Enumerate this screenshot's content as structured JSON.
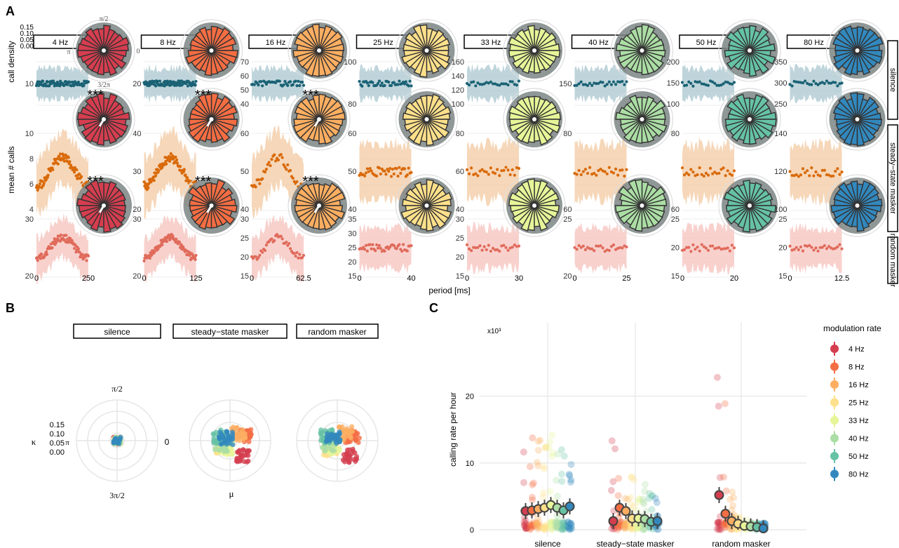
{
  "panel_labels": {
    "a": "A",
    "b": "B",
    "c": "C"
  },
  "panel_a": {
    "y_label_top": "call density",
    "y_label_main": "mean # calls",
    "x_label": "period [ms]",
    "significance_marker": "***",
    "density_ticks": [
      "0.15",
      "0.10",
      "0.05",
      "0.00"
    ],
    "polar_labels": {
      "top": "π/2",
      "left": "π",
      "right": "0",
      "bottom": "3/2π"
    },
    "row_labels": [
      "silence",
      "steady−state masker",
      "random masker"
    ],
    "columns": [
      {
        "label": "4 Hz",
        "color": "#D53E4F",
        "x_ticks": [
          "0",
          "250"
        ],
        "y_ticks_rows": [
          [
            "10"
          ],
          [
            "10",
            "8",
            "6",
            "4"
          ],
          [
            "30",
            "20"
          ]
        ],
        "sig_rows": [
          1,
          2
        ]
      },
      {
        "label": "8 Hz",
        "color": "#F46D43",
        "x_ticks": [
          "0",
          "125"
        ],
        "y_ticks_rows": [
          [
            "20"
          ],
          [
            "40",
            "30",
            "20"
          ],
          [
            "30",
            "20"
          ]
        ],
        "sig_rows": [
          1,
          2
        ]
      },
      {
        "label": "16 Hz",
        "color": "#FDAE61",
        "x_ticks": [
          "0",
          "62.5"
        ],
        "y_ticks_rows": [
          [
            "70",
            "60",
            "50",
            "40"
          ],
          [
            "60",
            "50",
            "40"
          ],
          [
            "30",
            "25",
            "20",
            "15"
          ]
        ],
        "sig_rows": [
          1,
          2
        ]
      },
      {
        "label": "25 Hz",
        "color": "#FEE08B",
        "x_ticks": [
          "0",
          "40"
        ],
        "y_ticks_rows": [
          [
            "100",
            "80"
          ],
          [
            "60",
            "50",
            "40"
          ],
          [
            "35",
            "30",
            "25",
            "20",
            "15"
          ]
        ],
        "sig_rows": []
      },
      {
        "label": "33 Hz",
        "color": "#E6F598",
        "x_ticks": [
          "0",
          "30"
        ],
        "y_ticks_rows": [
          [
            "160",
            "140",
            "120",
            "100"
          ],
          [
            "80",
            "60",
            "40"
          ],
          [
            "30",
            "25",
            "20",
            "15"
          ]
        ],
        "sig_rows": []
      },
      {
        "label": "40 Hz",
        "color": "#ABDDA4",
        "x_ticks": [
          "0",
          "25"
        ],
        "y_ticks_rows": [
          [
            "150"
          ],
          [
            "80",
            "60"
          ],
          [
            "25",
            "20"
          ]
        ],
        "sig_rows": []
      },
      {
        "label": "50 Hz",
        "color": "#66C2A5",
        "x_ticks": [
          "0",
          "20"
        ],
        "y_ticks_rows": [
          [
            "200",
            "150",
            "100"
          ],
          [
            "80",
            "60"
          ],
          [
            "25",
            "20",
            "15"
          ]
        ],
        "sig_rows": []
      },
      {
        "label": "80 Hz",
        "color": "#3288BD",
        "x_ticks": [
          "0",
          "12.5"
        ],
        "y_ticks_rows": [
          [
            "350",
            "300",
            "250"
          ],
          [
            "140",
            "120",
            "100"
          ],
          [
            "25",
            "20",
            "15"
          ]
        ],
        "sig_rows": []
      }
    ],
    "row_colors": {
      "silence_line": "#1B6275",
      "silence_band": "#A9C7CF",
      "steady_line": "#D96A0A",
      "steady_band": "#F3C9A1",
      "random_line": "#E06B5B",
      "random_band": "#F5C2BC"
    }
  },
  "panel_b": {
    "facets": [
      "silence",
      "steady−state masker",
      "random masker"
    ],
    "y_label": "κ",
    "x_label": "μ",
    "r_ticks": [
      "0.15",
      "0.10",
      "0.05",
      "0.00"
    ],
    "angle_labels": {
      "top": "π/2",
      "left": "π",
      "right": "0",
      "bottom": "3π/2"
    }
  },
  "chart_data": {
    "type": "scatter",
    "title": "",
    "xlabel": "",
    "ylabel": "calling rate per hour",
    "y_multiplier": "x10³",
    "categories": [
      "silence",
      "steady−state masker",
      "random masker"
    ],
    "ylim": [
      0,
      31
    ],
    "y_ticks": [
      0,
      10,
      20
    ],
    "legend_title": "modulation rate",
    "legend_position": "right",
    "grid": true,
    "series": [
      {
        "name": "4 Hz",
        "color": "#D53E4F",
        "values": [
          2.8,
          1.3,
          5.2
        ]
      },
      {
        "name": "8 Hz",
        "color": "#F46D43",
        "values": [
          2.9,
          3.3,
          2.4
        ]
      },
      {
        "name": "16 Hz",
        "color": "#FDAE61",
        "values": [
          3.1,
          2.8,
          1.3
        ]
      },
      {
        "name": "25 Hz",
        "color": "#FEE08B",
        "values": [
          3.3,
          1.7,
          0.9
        ]
      },
      {
        "name": "33 Hz",
        "color": "#E6F598",
        "values": [
          3.7,
          1.7,
          0.6
        ]
      },
      {
        "name": "40 Hz",
        "color": "#ABDDA4",
        "values": [
          3.3,
          1.6,
          0.5
        ]
      },
      {
        "name": "50 Hz",
        "color": "#66C2A5",
        "values": [
          2.9,
          1.2,
          0.4
        ]
      },
      {
        "name": "80 Hz",
        "color": "#3288BD",
        "values": [
          3.5,
          1.3,
          0.2
        ]
      }
    ]
  }
}
